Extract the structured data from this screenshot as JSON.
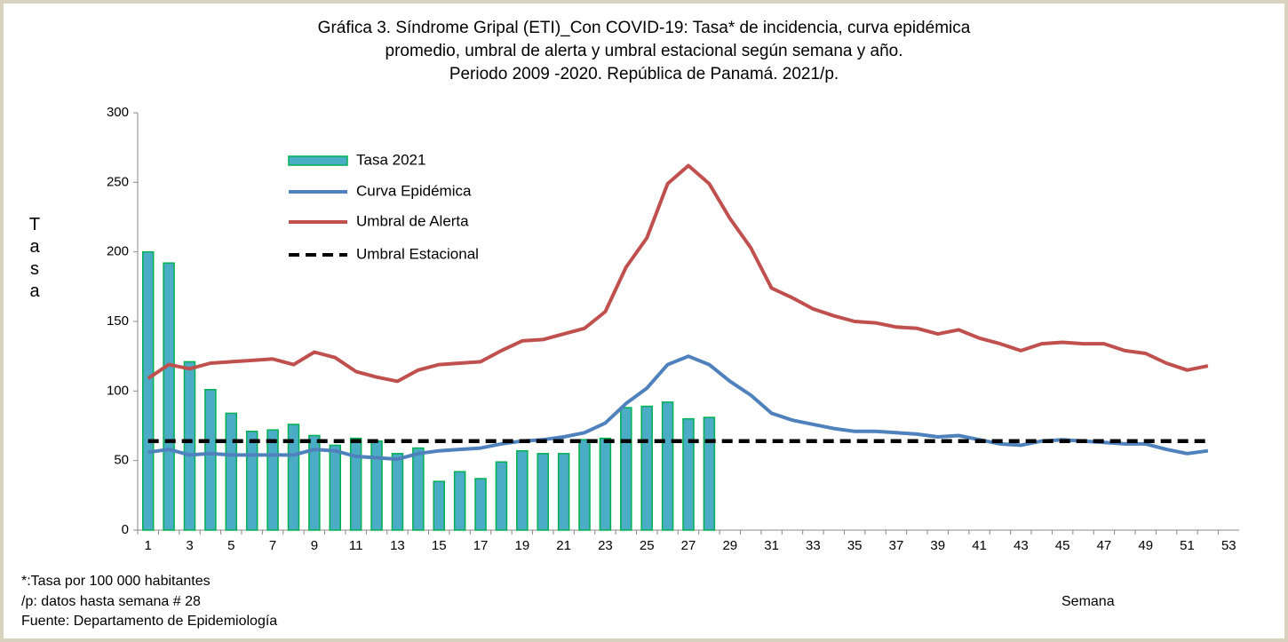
{
  "chart_data": {
    "type": "bar_line",
    "title": [
      "Gráfica 3. Síndrome Gripal (ETI)_Con COVID-19: Tasa* de incidencia, curva epidémica",
      "promedio, umbral de alerta y umbral estacional según semana y año.",
      "Periodo 2009 -2020.  República de Panamá. 2021/p."
    ],
    "y_label": "Tasa",
    "x_label": "Semana",
    "notes": [
      "*:Tasa por 100 000 habitantes",
      "/p: datos hasta semana # 28",
      "Fuente: Departamento de Epidemiología"
    ],
    "categories": [
      1,
      null,
      3,
      null,
      5,
      null,
      7,
      null,
      9,
      null,
      11,
      null,
      13,
      null,
      15,
      null,
      17,
      null,
      19,
      null,
      21,
      null,
      23,
      null,
      25,
      null,
      27,
      null,
      29,
      null,
      31,
      null,
      33,
      null,
      35,
      null,
      37,
      null,
      39,
      null,
      41,
      null,
      43,
      null,
      45,
      null,
      47,
      null,
      49,
      null,
      51,
      null,
      53
    ],
    "ylim": [
      0,
      300
    ],
    "yticks": [
      0,
      50,
      100,
      150,
      200,
      250,
      300
    ],
    "legend": "upper left",
    "series": [
      {
        "name": "Tasa 2021",
        "kind": "bar",
        "color": "#4bacc6",
        "edge": "#00b050",
        "values": [
          200,
          192,
          121,
          101,
          84,
          71,
          72,
          76,
          68,
          61,
          66,
          64,
          55,
          59,
          35,
          42,
          37,
          49,
          57,
          55,
          55,
          65,
          66,
          88,
          89,
          92,
          80,
          81,
          null,
          null,
          null,
          null,
          null,
          null,
          null,
          null,
          null,
          null,
          null,
          null,
          null,
          null,
          null,
          null,
          null,
          null,
          null,
          null,
          null,
          null,
          null,
          null,
          null
        ]
      },
      {
        "name": "Curva Epidémica",
        "kind": "line",
        "color": "#4f81bd",
        "values": [
          56,
          58,
          54,
          55,
          54,
          54,
          54,
          54,
          58,
          57,
          53,
          52,
          51,
          55,
          57,
          58,
          59,
          62,
          64,
          65,
          67,
          70,
          77,
          91,
          102,
          119,
          125,
          119,
          107,
          97,
          84,
          79,
          76,
          73,
          71,
          71,
          70,
          69,
          67,
          68,
          65,
          62,
          61,
          64,
          65,
          64,
          63,
          62,
          62,
          58,
          55,
          57,
          null
        ]
      },
      {
        "name": "Umbral de Alerta",
        "kind": "line",
        "color": "#c0504d",
        "values": [
          109,
          119,
          116,
          120,
          121,
          122,
          123,
          119,
          128,
          124,
          114,
          110,
          107,
          115,
          119,
          120,
          121,
          129,
          136,
          137,
          141,
          145,
          157,
          189,
          210,
          249,
          262,
          249,
          224,
          203,
          174,
          167,
          159,
          154,
          150,
          149,
          146,
          145,
          141,
          144,
          138,
          134,
          129,
          134,
          135,
          134,
          134,
          129,
          127,
          120,
          115,
          118,
          null
        ]
      },
      {
        "name": "Umbral Estacional",
        "kind": "dashed",
        "color": "#000000",
        "values": [
          64,
          64,
          64,
          64,
          64,
          64,
          64,
          64,
          64,
          64,
          64,
          64,
          64,
          64,
          64,
          64,
          64,
          64,
          64,
          64,
          64,
          64,
          64,
          64,
          64,
          64,
          64,
          64,
          64,
          64,
          64,
          64,
          64,
          64,
          64,
          64,
          64,
          64,
          64,
          64,
          64,
          64,
          64,
          64,
          64,
          64,
          64,
          64,
          64,
          64,
          64,
          64,
          null
        ]
      }
    ]
  }
}
